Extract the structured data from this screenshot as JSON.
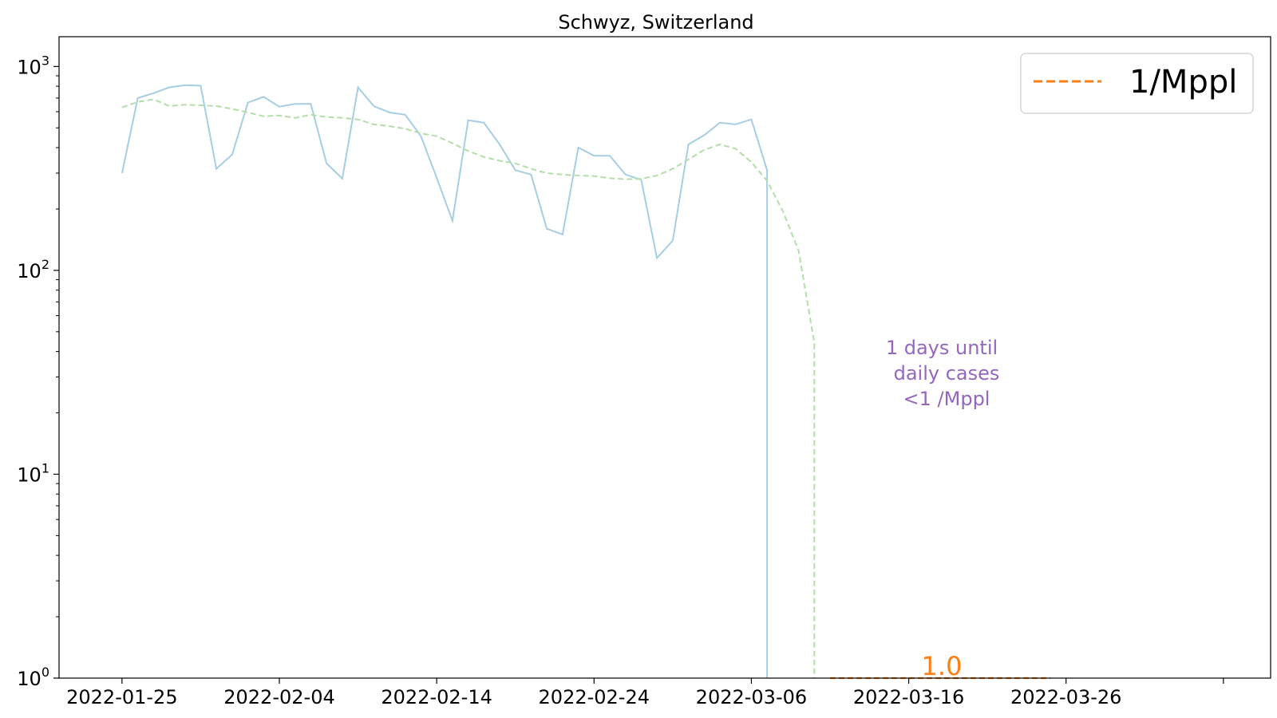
{
  "chart_data": {
    "type": "line",
    "title": "Schwyz, Switzerland",
    "xlabel": "",
    "ylabel": "",
    "yscale": "log",
    "ylim": [
      1,
      1400
    ],
    "xlim": [
      "2022-01-21",
      "2022-04-08"
    ],
    "x_ticks": [
      "2022-01-25",
      "2022-02-04",
      "2022-02-14",
      "2022-02-24",
      "2022-03-06",
      "2022-03-16",
      "2022-03-26",
      "2022-04-05"
    ],
    "x_tick_labels": [
      "2022-01-25",
      "2022-02-04",
      "2022-02-14",
      "2022-02-24",
      "2022-03-06",
      "2022-03-16",
      "2022-03-26",
      ""
    ],
    "y_ticks": [
      1,
      10,
      100,
      1000
    ],
    "y_tick_labels": [
      "10^0",
      "10^1",
      "10^2",
      "10^3"
    ],
    "grid": false,
    "legend_placement": "top-right",
    "series": [
      {
        "key": "daily",
        "color": "#a6cee3",
        "style": "solid",
        "x": [
          "2022-01-25",
          "2022-01-26",
          "2022-01-27",
          "2022-01-28",
          "2022-01-29",
          "2022-01-30",
          "2022-01-31",
          "2022-02-01",
          "2022-02-02",
          "2022-02-03",
          "2022-02-04",
          "2022-02-05",
          "2022-02-06",
          "2022-02-07",
          "2022-02-08",
          "2022-02-09",
          "2022-02-10",
          "2022-02-11",
          "2022-02-12",
          "2022-02-13",
          "2022-02-14",
          "2022-02-15",
          "2022-02-16",
          "2022-02-17",
          "2022-02-18",
          "2022-02-19",
          "2022-02-20",
          "2022-02-21",
          "2022-02-22",
          "2022-02-23",
          "2022-02-24",
          "2022-02-25",
          "2022-02-26",
          "2022-02-27",
          "2022-02-28",
          "2022-03-01",
          "2022-03-02",
          "2022-03-03",
          "2022-03-04",
          "2022-03-05",
          "2022-03-06",
          "2022-03-07",
          "2022-03-07"
        ],
        "values": [
          300,
          700,
          740,
          790,
          810,
          805,
          315,
          370,
          665,
          710,
          635,
          655,
          655,
          335,
          282,
          790,
          640,
          595,
          580,
          455,
          285,
          175,
          545,
          530,
          415,
          310,
          295,
          160,
          150,
          400,
          365,
          365,
          295,
          278,
          115,
          140,
          415,
          460,
          530,
          520,
          550,
          310,
          1
        ]
      },
      {
        "key": "smoothed",
        "color": "#b2dfa8",
        "style": "dashed",
        "x": [
          "2022-01-25",
          "2022-01-26",
          "2022-01-27",
          "2022-01-28",
          "2022-01-29",
          "2022-01-30",
          "2022-01-31",
          "2022-02-01",
          "2022-02-02",
          "2022-02-03",
          "2022-02-04",
          "2022-02-05",
          "2022-02-06",
          "2022-02-07",
          "2022-02-08",
          "2022-02-09",
          "2022-02-10",
          "2022-02-11",
          "2022-02-12",
          "2022-02-13",
          "2022-02-14",
          "2022-02-15",
          "2022-02-16",
          "2022-02-17",
          "2022-02-18",
          "2022-02-19",
          "2022-02-20",
          "2022-02-21",
          "2022-02-22",
          "2022-02-23",
          "2022-02-24",
          "2022-02-25",
          "2022-02-26",
          "2022-02-27",
          "2022-02-28",
          "2022-03-01",
          "2022-03-02",
          "2022-03-03",
          "2022-03-04",
          "2022-03-05",
          "2022-03-06",
          "2022-03-07",
          "2022-03-08",
          "2022-03-09",
          "2022-03-10",
          "2022-03-10"
        ],
        "values": [
          630,
          670,
          690,
          640,
          650,
          645,
          640,
          620,
          595,
          570,
          575,
          560,
          580,
          565,
          560,
          550,
          520,
          510,
          495,
          470,
          455,
          420,
          385,
          360,
          345,
          335,
          315,
          300,
          295,
          292,
          290,
          283,
          280,
          281,
          292,
          315,
          350,
          390,
          415,
          395,
          340,
          275,
          195,
          125,
          44,
          1
        ]
      },
      {
        "key": "threshold",
        "name": "1/Mppl",
        "color": "#ff7f0e",
        "style": "dashed",
        "x": [
          "2022-03-11",
          "2022-03-25"
        ],
        "values": [
          1,
          1
        ]
      }
    ],
    "legend_entries": [
      "1/Mppl"
    ],
    "annotations": [
      {
        "text_lines": [
          "1 days until",
          "daily cases",
          "<1 /Mppl"
        ],
        "color": "#9467bd"
      },
      {
        "text": "1.0",
        "color": "#ff7f0e",
        "x": "2022-03-18",
        "y": 1
      }
    ]
  }
}
